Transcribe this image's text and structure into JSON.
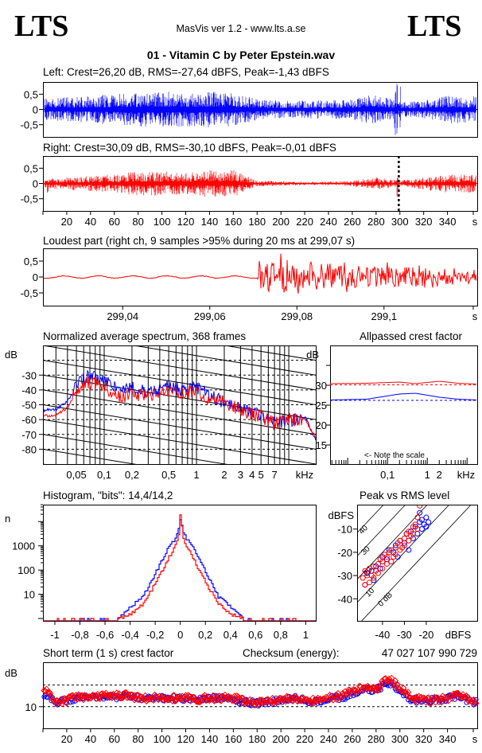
{
  "header": {
    "logo_left": "LTS",
    "logo_right": "LTS",
    "app": "MasVis ver 1.2 - www.lts.a.se",
    "file": "01 - Vitamin C by Peter Epstein.wav"
  },
  "colors": {
    "left": "#0000ff",
    "right": "#ff0000",
    "grid": "#000000"
  },
  "chart_data": [
    {
      "id": "left-waveform",
      "type": "line",
      "title": "Left: Crest=26,20 dB, RMS=-27,64 dBFS, Peak=-1,43 dBFS",
      "channel": "left",
      "xlim": [
        0,
        365
      ],
      "ylim": [
        -0.9,
        0.9
      ],
      "yticks": [
        0.5,
        0,
        -0.5
      ],
      "ytick_labels": [
        "0,5",
        "0",
        "-0,5"
      ],
      "envelope_t": [
        0,
        20,
        40,
        60,
        80,
        100,
        120,
        140,
        160,
        180,
        200,
        220,
        240,
        260,
        280,
        300,
        320,
        340,
        365
      ],
      "envelope": [
        0.35,
        0.4,
        0.45,
        0.5,
        0.55,
        0.6,
        0.55,
        0.6,
        0.55,
        0.35,
        0.3,
        0.3,
        0.3,
        0.35,
        0.5,
        0.25,
        0.3,
        0.45,
        0.45
      ],
      "transients": [
        {
          "t": 91,
          "amp": 0.55
        },
        {
          "t": 296,
          "amp": 0.95
        },
        {
          "t": 298,
          "amp": 1.0
        },
        {
          "t": 300,
          "amp": 0.9
        }
      ]
    },
    {
      "id": "right-waveform",
      "type": "line",
      "title": "Right: Crest=30,09 dB, RMS=-30,10 dBFS, Peak=-0,01 dBFS",
      "channel": "right",
      "xlim": [
        0,
        365
      ],
      "ylim": [
        -0.9,
        0.9
      ],
      "yticks": [
        0.5,
        0,
        -0.5
      ],
      "ytick_labels": [
        "0,5",
        "0",
        "-0,5"
      ],
      "xticks": [
        20,
        40,
        60,
        80,
        100,
        120,
        140,
        160,
        180,
        200,
        220,
        240,
        260,
        280,
        300,
        320,
        340
      ],
      "xunit": "s",
      "envelope_t": [
        0,
        20,
        40,
        60,
        80,
        100,
        120,
        140,
        160,
        180,
        200,
        220,
        240,
        260,
        280,
        300,
        320,
        340,
        365
      ],
      "envelope": [
        0.15,
        0.2,
        0.25,
        0.3,
        0.4,
        0.4,
        0.35,
        0.45,
        0.45,
        0.1,
        0.08,
        0.06,
        0.06,
        0.1,
        0.2,
        0.1,
        0.2,
        0.3,
        0.3
      ],
      "transients": [
        {
          "t": 4,
          "amp": 0.35
        },
        {
          "t": 298,
          "amp": 0.6
        }
      ],
      "loudest_marker_s": 299.07
    },
    {
      "id": "loudest-part",
      "type": "line",
      "title": "Loudest part (right ch, 9 samples >95% during 20 ms at 299,07 s)",
      "channel": "right",
      "xlim": [
        299.0217,
        299.1214
      ],
      "ylim": [
        -0.9,
        0.9
      ],
      "yticks": [
        0.5,
        0,
        -0.5
      ],
      "ytick_labels": [
        "0,5",
        "0",
        "-0,5"
      ],
      "xticks": [
        299.04,
        299.06,
        299.08,
        299.1
      ],
      "xtick_labels": [
        "299,04",
        "299,06",
        "299,08",
        "299,1"
      ],
      "xunit": "s",
      "onset_s": 299.071,
      "quiet_amp": 0.06,
      "attack_amp": 0.8,
      "tail_amp": 0.25
    },
    {
      "id": "average-spectrum",
      "type": "line",
      "title": "Normalized average spectrum, 368 frames",
      "xscale": "log",
      "xlim": [
        0.0217,
        19.6
      ],
      "ylim": [
        -90,
        -10
      ],
      "xticks": [
        0.05,
        0.1,
        0.2,
        0.5,
        1,
        2,
        3,
        4,
        5,
        7
      ],
      "xtick_labels": [
        "0,05",
        "0,1",
        "0,2",
        "0,5",
        "1",
        "2",
        "3",
        "4",
        "5",
        "7"
      ],
      "xunit": "kHz",
      "yunit": "dB",
      "yticks": [
        -30,
        -40,
        -50,
        -60,
        -70,
        -80
      ],
      "freq_khz": [
        0.02,
        0.03,
        0.04,
        0.05,
        0.06,
        0.07,
        0.1,
        0.15,
        0.2,
        0.3,
        0.5,
        0.7,
        1,
        1.5,
        2,
        3,
        5,
        7,
        10,
        15,
        20
      ],
      "series": [
        {
          "channel": "left",
          "values": [
            -54,
            -53,
            -48,
            -37,
            -32,
            -31,
            -33,
            -40,
            -38,
            -42,
            -37,
            -40,
            -38,
            -45,
            -48,
            -52,
            -57,
            -62,
            -61,
            -58,
            -75
          ]
        },
        {
          "channel": "right",
          "values": [
            -58,
            -57,
            -52,
            -41,
            -37,
            -35,
            -38,
            -45,
            -42,
            -45,
            -40,
            -42,
            -42,
            -47,
            -48,
            -53,
            -58,
            -63,
            -60,
            -60,
            -73
          ]
        }
      ]
    },
    {
      "id": "allpassed-crest",
      "type": "line",
      "title": "Allpassed crest factor",
      "xscale": "log",
      "xlim": [
        0.0036,
        18
      ],
      "ylim": [
        10.2,
        40
      ],
      "xticks": [
        0.1,
        1,
        2
      ],
      "xtick_labels": [
        "0,1",
        "1",
        "2"
      ],
      "xunit": "kHz",
      "yunit": "dB",
      "yticks": [
        30,
        25,
        20,
        15
      ],
      "yticks_unlabeled": [
        35
      ],
      "note": "<- Note the scale",
      "freq_khz": [
        0.0036,
        0.03,
        0.2,
        0.5,
        2,
        6,
        18
      ],
      "series": [
        {
          "channel": "right",
          "values": [
            30.4,
            30.5,
            30.8,
            30.4,
            31.0,
            30.5,
            30.3
          ],
          "reference": 30.09
        },
        {
          "channel": "left",
          "values": [
            26.3,
            26.5,
            27.8,
            28.0,
            27.0,
            26.5,
            26.3
          ],
          "reference": 26.2
        }
      ]
    },
    {
      "id": "histogram",
      "type": "line",
      "title": "Histogram, \"bits\": 14,4/14,2",
      "yscale": "log",
      "xlim": [
        -1.095,
        1.08
      ],
      "ylim": [
        0.8,
        50000
      ],
      "xticks": [
        -1,
        -0.8,
        -0.6,
        -0.4,
        -0.2,
        0,
        0.2,
        0.4,
        0.6,
        0.8,
        1
      ],
      "xtick_labels": [
        "-1",
        "-0,8",
        "-0,6",
        "-0,4",
        "-0,2",
        "0",
        "0,2",
        "0,4",
        "0,6",
        "0,8",
        "1"
      ],
      "yticks": [
        1000,
        100,
        10
      ],
      "ytick_labels": [
        "1000",
        "100",
        "10"
      ],
      "yunit": "n",
      "abs_amplitude": [
        0,
        0.01,
        0.03,
        0.05,
        0.1,
        0.15,
        0.2,
        0.3,
        0.4,
        0.5,
        0.85
      ],
      "series": [
        {
          "channel": "left",
          "counts": [
            18000,
            6000,
            3000,
            1800,
            800,
            250,
            80,
            8,
            3,
            1,
            1
          ],
          "extent": 0.85
        },
        {
          "channel": "right",
          "counts": [
            50000,
            4000,
            1500,
            900,
            300,
            90,
            30,
            4,
            1.5,
            1,
            1
          ],
          "extent": 1.0
        }
      ]
    },
    {
      "id": "peak-vs-rms",
      "type": "scatter",
      "title": "Peak vs RMS level",
      "xlim": [
        -51.6,
        3.3
      ],
      "ylim": [
        -49.5,
        0.5
      ],
      "xticks": [
        -40,
        -30,
        -20
      ],
      "xtick_labels": [
        "-40",
        "-30",
        "-20"
      ],
      "yticks": [
        -10,
        -20,
        -30,
        -40
      ],
      "ytick_labels": [
        "-10",
        "-20",
        "-30",
        "-40"
      ],
      "xunit": "dBFS",
      "yunit": "dBFS",
      "crest_lines": [
        0,
        10,
        20,
        30,
        40
      ],
      "crest_line_labels": [
        "0 dB",
        "10",
        "20",
        "30",
        "40"
      ],
      "series": [
        {
          "channel": "left",
          "points": [
            [
              -48,
              -34
            ],
            [
              -47,
              -29
            ],
            [
              -45,
              -28
            ],
            [
              -44,
              -32
            ],
            [
              -43,
              -26
            ],
            [
              -41,
              -27
            ],
            [
              -40,
              -22
            ],
            [
              -38,
              -23
            ],
            [
              -37,
              -19
            ],
            [
              -35,
              -20
            ],
            [
              -34,
              -17
            ],
            [
              -33,
              -22
            ],
            [
              -32,
              -15
            ],
            [
              -30,
              -16
            ],
            [
              -29,
              -12
            ],
            [
              -28,
              -19
            ],
            [
              -27,
              -11
            ],
            [
              -26,
              -14
            ],
            [
              -25,
              -9
            ],
            [
              -24,
              -12
            ],
            [
              -23,
              -7
            ],
            [
              -22,
              -10
            ],
            [
              -22,
              -6
            ],
            [
              -21,
              -8
            ],
            [
              -20,
              -9
            ],
            [
              -20,
              -5
            ],
            [
              -19,
              -7
            ],
            [
              -23,
              -3
            ]
          ]
        },
        {
          "channel": "right",
          "points": [
            [
              -49,
              -31
            ],
            [
              -48,
              -34
            ],
            [
              -48,
              -28
            ],
            [
              -47,
              -30
            ],
            [
              -46,
              -33
            ],
            [
              -46,
              -27
            ],
            [
              -45,
              -30
            ],
            [
              -44,
              -26
            ],
            [
              -44,
              -31
            ],
            [
              -43,
              -28
            ],
            [
              -42,
              -25
            ],
            [
              -42,
              -29
            ],
            [
              -41,
              -23
            ],
            [
              -40,
              -27
            ],
            [
              -40,
              -24
            ],
            [
              -39,
              -21
            ],
            [
              -38,
              -25
            ],
            [
              -38,
              -22
            ],
            [
              -37,
              -20
            ],
            [
              -36,
              -24
            ],
            [
              -36,
              -19
            ],
            [
              -35,
              -22
            ],
            [
              -34,
              -18
            ],
            [
              -34,
              -21
            ],
            [
              -33,
              -16
            ],
            [
              -32,
              -19
            ],
            [
              -32,
              -15
            ],
            [
              -31,
              -18
            ],
            [
              -30,
              -14
            ],
            [
              -30,
              -17
            ],
            [
              -29,
              -12
            ],
            [
              -28,
              -15
            ],
            [
              -28,
              -11
            ],
            [
              -27,
              -13
            ],
            [
              -26,
              -9
            ],
            [
              -26,
              -12
            ],
            [
              -25,
              -8
            ],
            [
              -24,
              -10
            ],
            [
              -24,
              -5
            ],
            [
              -23,
              0
            ]
          ]
        }
      ]
    },
    {
      "id": "short-term-crest",
      "type": "scatter",
      "title": "Short term (1 s) crest factor",
      "checksum_label": "Checksum (energy):",
      "checksum_value": "47 027 107 990 729",
      "xlim": [
        0,
        365
      ],
      "ylim": [
        0,
        30.5
      ],
      "xticks": [
        20,
        40,
        60,
        80,
        100,
        120,
        140,
        160,
        180,
        200,
        220,
        240,
        260,
        280,
        300,
        320,
        340
      ],
      "xunit": "s",
      "yunit": "dB",
      "yticks": [
        10
      ],
      "ytick_labels": [
        "10"
      ],
      "reference_lines": [
        10,
        20
      ],
      "t": [
        2,
        10,
        20,
        30,
        40,
        50,
        60,
        70,
        80,
        90,
        100,
        110,
        120,
        130,
        140,
        150,
        160,
        170,
        180,
        190,
        200,
        210,
        220,
        230,
        240,
        250,
        260,
        270,
        280,
        290,
        300,
        310,
        320,
        330,
        340,
        350,
        363
      ],
      "series": [
        {
          "channel": "left",
          "values": [
            16,
            12,
            13,
            14,
            14,
            15,
            14,
            15,
            14,
            14,
            14,
            13.5,
            14,
            13.5,
            14,
            14,
            13.5,
            12,
            11.5,
            12,
            13,
            14,
            13,
            12,
            14,
            14,
            16,
            18,
            18,
            21,
            18,
            13,
            13,
            13,
            14,
            14.5,
            12
          ]
        },
        {
          "channel": "right",
          "values": [
            18,
            12,
            13,
            14.5,
            14,
            15,
            15,
            15,
            14,
            14,
            14,
            14,
            14,
            13.5,
            14,
            14,
            14,
            12.5,
            12,
            12.5,
            13,
            14,
            13,
            12.5,
            14,
            15,
            17,
            19,
            18,
            23,
            19,
            14,
            13,
            13,
            14,
            15,
            13
          ]
        }
      ]
    }
  ]
}
